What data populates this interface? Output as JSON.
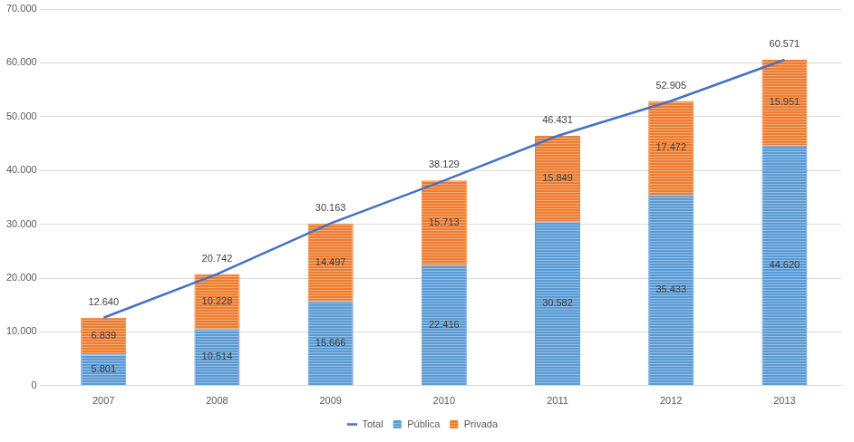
{
  "chart_data": {
    "type": "bar",
    "stacked": true,
    "grid": true,
    "legend": "bottom",
    "data_labels": true,
    "categories": [
      "2007",
      "2008",
      "2009",
      "2010",
      "2011",
      "2012",
      "2013"
    ],
    "series": [
      {
        "name": "Pública",
        "color": "#5b9bd5",
        "values": [
          5801,
          10514,
          15666,
          22416,
          30582,
          35433,
          44620
        ],
        "value_labels": [
          "5.801",
          "10.514",
          "15.666",
          "22.416",
          "30.582",
          "35.433",
          "44.620"
        ]
      },
      {
        "name": "Privada",
        "color": "#ed7d31",
        "values": [
          6839,
          10228,
          14497,
          15713,
          15849,
          17472,
          15951
        ],
        "value_labels": [
          "6.839",
          "10.228",
          "14.497",
          "15.713",
          "15.849",
          "17.472",
          "15.951"
        ]
      },
      {
        "name": "Total",
        "type": "line",
        "color": "#4472c4",
        "values": [
          12640,
          20742,
          30163,
          38129,
          46431,
          52905,
          60571
        ],
        "value_labels": [
          "12.640",
          "20.742",
          "30.163",
          "38.129",
          "46.431",
          "52.905",
          "60.571"
        ]
      }
    ],
    "ylim": [
      0,
      70000
    ],
    "yticks": [
      0,
      {
        "value": 10000,
        "label": "10.000"
      },
      {
        "value": 20000,
        "label": "20.000"
      },
      {
        "value": 30000,
        "label": "30.000"
      },
      {
        "value": 40000,
        "label": "40.000"
      },
      {
        "value": 50000,
        "label": "50.000"
      },
      {
        "value": 60000,
        "label": "60.000"
      },
      {
        "value": 70000,
        "label": "70.000"
      }
    ]
  }
}
